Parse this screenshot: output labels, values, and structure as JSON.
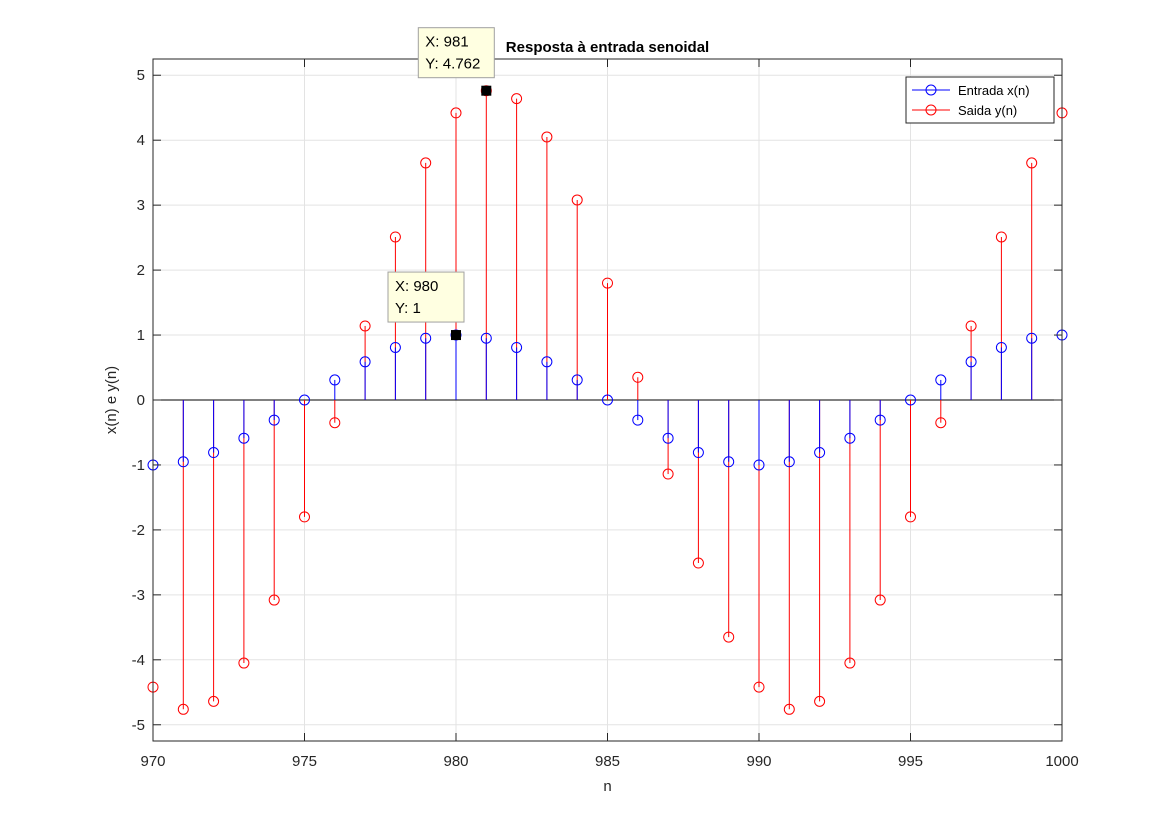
{
  "chart_data": {
    "type": "stem",
    "title": "Resposta à entrada senoidal",
    "xlabel": "n",
    "ylabel": "x(n) e y(n)",
    "xlim": [
      970,
      1000
    ],
    "ylim": [
      -5.25,
      5.25
    ],
    "grid": true,
    "legend_position": "top-right",
    "xticks": [
      "970",
      "975",
      "980",
      "985",
      "990",
      "995",
      "1000"
    ],
    "yticks": [
      "5",
      "4",
      "3",
      "2",
      "1",
      "0",
      "-1",
      "-2",
      "-3",
      "-4",
      "-5"
    ],
    "x": [
      970,
      971,
      972,
      973,
      974,
      975,
      976,
      977,
      978,
      979,
      980,
      981,
      982,
      983,
      984,
      985,
      986,
      987,
      988,
      989,
      990,
      991,
      992,
      993,
      994,
      995,
      996,
      997,
      998,
      999,
      1000
    ],
    "series": [
      {
        "name": "Entrada x(n)",
        "color": "#0000ff",
        "values": [
          -1,
          -0.951,
          -0.809,
          -0.588,
          -0.309,
          0,
          0.309,
          0.588,
          0.809,
          0.951,
          1,
          0.951,
          0.809,
          0.588,
          0.309,
          0,
          -0.309,
          -0.588,
          -0.809,
          -0.951,
          -1,
          -0.951,
          -0.809,
          -0.588,
          -0.309,
          0,
          0.309,
          0.588,
          0.809,
          0.951,
          1
        ]
      },
      {
        "name": "Saida y(n)",
        "color": "#ff0000",
        "values": [
          -4.42,
          -4.762,
          -4.64,
          -4.05,
          -3.08,
          -1.8,
          -0.35,
          1.14,
          2.51,
          3.65,
          4.42,
          4.762,
          4.64,
          4.05,
          3.08,
          1.8,
          0.35,
          -1.14,
          -2.51,
          -3.65,
          -4.42,
          -4.762,
          -4.64,
          -4.05,
          -3.08,
          -1.8,
          -0.35,
          1.14,
          2.51,
          3.65,
          4.42
        ]
      }
    ],
    "datatips": [
      {
        "x": 981,
        "y": 4.762,
        "line1": "X: 981",
        "line2": "Y: 4.762"
      },
      {
        "x": 980,
        "y": 1,
        "line1": "X: 980",
        "line2": "Y: 1"
      }
    ]
  }
}
